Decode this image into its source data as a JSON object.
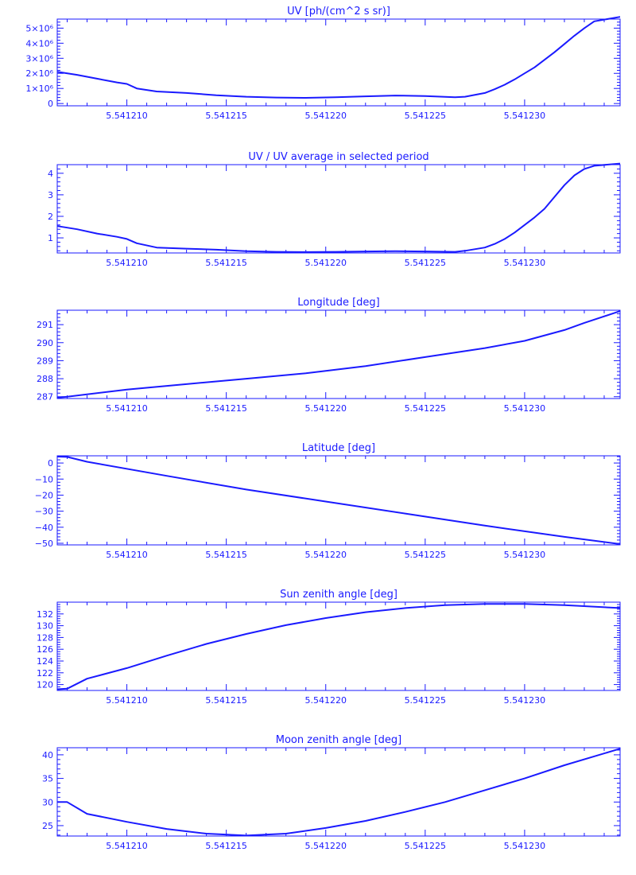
{
  "colors": {
    "line": "#1a1aff",
    "background": "#ffffff"
  },
  "chart_data": [
    {
      "type": "line",
      "title": "UV [ph/(cm^2 s sr)]",
      "xlim": [
        5.5412065,
        5.5412348
      ],
      "ylim": [
        -150000,
        5600000
      ],
      "x_ticks": [
        5.54121,
        5.541215,
        5.54122,
        5.541225,
        5.54123
      ],
      "x_tick_labels": [
        "5.541210",
        "5.541215",
        "5.541220",
        "5.541225",
        "5.541230"
      ],
      "y_ticks": [
        0,
        1000000,
        2000000,
        3000000,
        4000000,
        5000000
      ],
      "y_tick_labels": [
        "0",
        "1×10⁶",
        "2×10⁶",
        "3×10⁶",
        "4×10⁶",
        "5×10⁶"
      ],
      "x": [
        5.5412065,
        5.5412075,
        5.5412085,
        5.5412095,
        5.54121,
        5.5412105,
        5.5412115,
        5.541213,
        5.5412145,
        5.541216,
        5.5412175,
        5.541219,
        5.5412205,
        5.541222,
        5.5412235,
        5.541225,
        5.5412265,
        5.541227,
        5.541228,
        5.5412285,
        5.541229,
        5.5412295,
        5.54123,
        5.5412305,
        5.541231,
        5.5412315,
        5.541232,
        5.5412325,
        5.541233,
        5.5412335,
        5.5412348
      ],
      "y": [
        2100000,
        1900000,
        1650000,
        1400000,
        1300000,
        1000000,
        800000,
        700000,
        550000,
        450000,
        400000,
        380000,
        420000,
        480000,
        530000,
        500000,
        420000,
        450000,
        700000,
        950000,
        1250000,
        1600000,
        2000000,
        2400000,
        2900000,
        3400000,
        3950000,
        4500000,
        5000000,
        5450000,
        5750000
      ]
    },
    {
      "type": "line",
      "title": "UV / UV average in selected period",
      "xlim": [
        5.5412065,
        5.5412348
      ],
      "ylim": [
        0.3,
        4.4
      ],
      "x_ticks": [
        5.54121,
        5.541215,
        5.54122,
        5.541225,
        5.54123
      ],
      "x_tick_labels": [
        "5.541210",
        "5.541215",
        "5.541220",
        "5.541225",
        "5.541230"
      ],
      "y_ticks": [
        1,
        2,
        3,
        4
      ],
      "y_tick_labels": [
        "1",
        "2",
        "3",
        "4"
      ],
      "x": [
        5.5412065,
        5.5412075,
        5.5412085,
        5.5412095,
        5.54121,
        5.5412105,
        5.5412115,
        5.541213,
        5.5412145,
        5.541216,
        5.5412175,
        5.541219,
        5.5412205,
        5.541222,
        5.5412235,
        5.541225,
        5.5412265,
        5.541227,
        5.541228,
        5.5412285,
        5.541229,
        5.5412295,
        5.54123,
        5.5412305,
        5.541231,
        5.5412315,
        5.541232,
        5.5412325,
        5.541233,
        5.5412335,
        5.5412348
      ],
      "y": [
        1.55,
        1.4,
        1.2,
        1.05,
        0.95,
        0.75,
        0.55,
        0.5,
        0.45,
        0.38,
        0.35,
        0.34,
        0.35,
        0.37,
        0.38,
        0.37,
        0.35,
        0.4,
        0.55,
        0.72,
        0.95,
        1.25,
        1.6,
        1.95,
        2.35,
        2.9,
        3.45,
        3.9,
        4.2,
        4.35,
        4.45
      ]
    },
    {
      "type": "line",
      "title": "Longitude [deg]",
      "xlim": [
        5.5412065,
        5.5412348
      ],
      "ylim": [
        286.9,
        291.8
      ],
      "x_ticks": [
        5.54121,
        5.541215,
        5.54122,
        5.541225,
        5.54123
      ],
      "x_tick_labels": [
        "5.541210",
        "5.541215",
        "5.541220",
        "5.541225",
        "5.541230"
      ],
      "y_ticks": [
        287,
        288,
        289,
        290,
        291
      ],
      "y_tick_labels": [
        "287",
        "288",
        "289",
        "290",
        "291"
      ],
      "x": [
        5.5412065,
        5.541207,
        5.54121,
        5.541213,
        5.541216,
        5.541219,
        5.541222,
        5.541225,
        5.541228,
        5.54123,
        5.541232,
        5.541233,
        5.5412348
      ],
      "y": [
        286.95,
        287.0,
        287.4,
        287.7,
        288.0,
        288.3,
        288.7,
        289.2,
        289.7,
        290.1,
        290.7,
        291.1,
        291.75
      ]
    },
    {
      "type": "line",
      "title": "Latitude [deg]",
      "xlim": [
        5.5412065,
        5.5412348
      ],
      "ylim": [
        -51,
        4.5
      ],
      "x_ticks": [
        5.54121,
        5.541215,
        5.54122,
        5.541225,
        5.54123
      ],
      "x_tick_labels": [
        "5.541210",
        "5.541215",
        "5.541220",
        "5.541225",
        "5.541230"
      ],
      "y_ticks": [
        0,
        -10,
        -20,
        -30,
        -40,
        -50
      ],
      "y_tick_labels": [
        "0",
        "−10",
        "−20",
        "−30",
        "−40",
        "−50"
      ],
      "x": [
        5.5412065,
        5.541207,
        5.541208,
        5.541212,
        5.541216,
        5.54122,
        5.541224,
        5.541228,
        5.541232,
        5.5412348
      ],
      "y": [
        4.0,
        3.8,
        0.8,
        -8.0,
        -16.5,
        -24.0,
        -31.5,
        -39.0,
        -46.0,
        -50.5
      ]
    },
    {
      "type": "line",
      "title": "Sun zenith angle [deg]",
      "xlim": [
        5.5412065,
        5.5412348
      ],
      "ylim": [
        119,
        134
      ],
      "x_ticks": [
        5.54121,
        5.541215,
        5.54122,
        5.541225,
        5.54123
      ],
      "x_tick_labels": [
        "5.541210",
        "5.541215",
        "5.541220",
        "5.541225",
        "5.541230"
      ],
      "y_ticks": [
        120,
        122,
        124,
        126,
        128,
        130,
        132
      ],
      "y_tick_labels": [
        "120",
        "122",
        "124",
        "126",
        "128",
        "130",
        "132"
      ],
      "x": [
        5.5412065,
        5.541207,
        5.541208,
        5.54121,
        5.541212,
        5.541214,
        5.541216,
        5.541218,
        5.54122,
        5.541222,
        5.541224,
        5.541226,
        5.541228,
        5.54123,
        5.541232,
        5.5412348
      ],
      "y": [
        119.2,
        119.3,
        121.0,
        122.8,
        124.9,
        126.9,
        128.6,
        130.1,
        131.3,
        132.3,
        133.0,
        133.5,
        133.7,
        133.7,
        133.5,
        133.0
      ]
    },
    {
      "type": "line",
      "title": "Moon zenith angle [deg]",
      "xlim": [
        5.5412065,
        5.5412348
      ],
      "ylim": [
        22.8,
        41.5
      ],
      "x_ticks": [
        5.54121,
        5.541215,
        5.54122,
        5.541225,
        5.54123
      ],
      "x_tick_labels": [
        "5.541210",
        "5.541215",
        "5.541220",
        "5.541225",
        "5.541230"
      ],
      "y_ticks": [
        25,
        30,
        35,
        40
      ],
      "y_tick_labels": [
        "25",
        "30",
        "35",
        "40"
      ],
      "x": [
        5.5412065,
        5.541207,
        5.541208,
        5.54121,
        5.541212,
        5.541214,
        5.541216,
        5.541218,
        5.54122,
        5.541222,
        5.541224,
        5.541226,
        5.541228,
        5.54123,
        5.541232,
        5.5412348
      ],
      "y": [
        30.0,
        30.0,
        27.5,
        25.8,
        24.3,
        23.3,
        22.9,
        23.3,
        24.5,
        26.0,
        27.9,
        30.0,
        32.5,
        35.0,
        37.8,
        41.3
      ]
    }
  ]
}
